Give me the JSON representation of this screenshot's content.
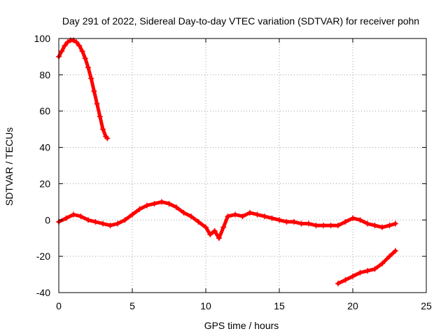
{
  "chart_data": {
    "type": "scatter",
    "title": "Day 291 of 2022, Sidereal Day-to-day VTEC variation (SDTVAR) for receiver pohn",
    "xlabel": "GPS time / hours",
    "ylabel": "SDTVAR / TECUs",
    "xlim": [
      0,
      25
    ],
    "ylim": [
      -40,
      100
    ],
    "xticks": [
      0,
      5,
      10,
      15,
      20,
      25
    ],
    "yticks": [
      -40,
      -20,
      0,
      20,
      40,
      60,
      80,
      100
    ],
    "grid": true,
    "marker": "plus",
    "series_color": "#ff0000",
    "series": [
      {
        "name": "upper arc",
        "x": [
          0.0,
          0.2,
          0.4,
          0.6,
          0.8,
          1.0,
          1.2,
          1.4,
          1.6,
          1.8,
          2.0,
          2.2,
          2.4,
          2.6,
          2.8,
          3.0,
          3.2,
          3.3
        ],
        "y": [
          90,
          93,
          96,
          98,
          99,
          99,
          98,
          96,
          93,
          89,
          84,
          78,
          71,
          64,
          57,
          50,
          46,
          45
        ]
      },
      {
        "name": "main band",
        "x": [
          0.0,
          0.5,
          1.0,
          1.5,
          2.0,
          2.5,
          3.0,
          3.5,
          4.0,
          4.5,
          5.0,
          5.5,
          6.0,
          6.5,
          7.0,
          7.5,
          8.0,
          8.5,
          9.0,
          9.5,
          10.0,
          10.3,
          10.6,
          10.9,
          11.2,
          11.5,
          12.0,
          12.5,
          13.0,
          13.5,
          14.0,
          14.5,
          15.0,
          15.5,
          16.0,
          16.5,
          17.0,
          17.5,
          18.0,
          18.5,
          19.0,
          19.5,
          20.0,
          20.5,
          21.0,
          21.5,
          22.0,
          22.5,
          22.9
        ],
        "y": [
          -1,
          1,
          3,
          2,
          0,
          -1,
          -2,
          -3,
          -2,
          0,
          3,
          6,
          8,
          9,
          10,
          9,
          7,
          4,
          2,
          -1,
          -4,
          -8,
          -6,
          -10,
          -4,
          2,
          3,
          2,
          4,
          3,
          2,
          1,
          0,
          -1,
          -1,
          -2,
          -2,
          -3,
          -3,
          -3,
          -3,
          -1,
          1,
          0,
          -2,
          -3,
          -4,
          -3,
          -2
        ]
      },
      {
        "name": "lower segment",
        "x": [
          19.0,
          19.5,
          20.0,
          20.5,
          21.0,
          21.5,
          22.0,
          22.5,
          22.9
        ],
        "y": [
          -35,
          -33,
          -31,
          -29,
          -28,
          -27,
          -24,
          -20,
          -17
        ]
      }
    ]
  }
}
